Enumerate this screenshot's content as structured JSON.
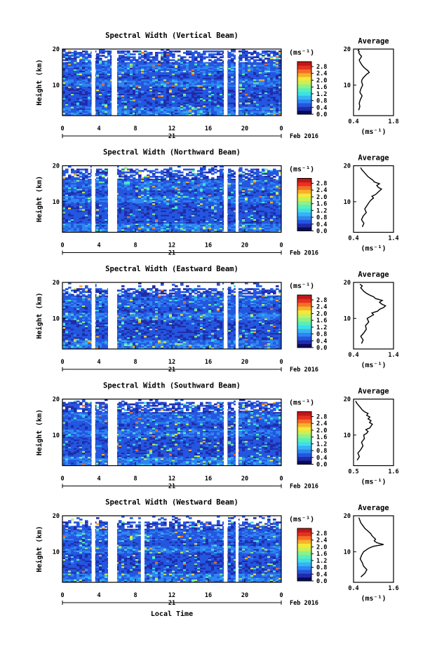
{
  "colors": {
    "colormap": [
      "#0a0a60",
      "#1f2ca8",
      "#2456e0",
      "#2f86f0",
      "#35b4f4",
      "#3ee0e6",
      "#58f0b8",
      "#90f088",
      "#c8f058",
      "#f4e838",
      "#f8b02c",
      "#f47024",
      "#e83020",
      "#c01818"
    ],
    "gap": "#ffffff",
    "frame": "#000000",
    "profile": "#000000"
  },
  "panels": [
    {
      "title": "Spectral Width (Vertical Beam)",
      "ylabel": "Height (km)",
      "yticks": [
        "20",
        "10"
      ],
      "xticks": [
        "0",
        "4",
        "8",
        "12",
        "16",
        "20",
        "0"
      ],
      "day": "21",
      "date_label": "Feb 2016",
      "colorbar": {
        "unit": "(ms⁻¹)",
        "labels": [
          "2.8",
          "2.4",
          "2.0",
          "1.6",
          "1.2",
          "0.8",
          "0.4",
          "0.0"
        ]
      },
      "average": {
        "title": "Average",
        "xlabel": "(ms⁻¹)",
        "xticks": [
          "0.4",
          "1.8"
        ],
        "yticks": [
          "20",
          "10"
        ]
      }
    },
    {
      "title": "Spectral Width (Northward Beam)",
      "ylabel": "Height (km)",
      "yticks": [
        "20",
        "10"
      ],
      "xticks": [
        "0",
        "4",
        "8",
        "12",
        "16",
        "20",
        "0"
      ],
      "day": "21",
      "date_label": "Feb 2016",
      "colorbar": {
        "unit": "(ms⁻¹)",
        "labels": [
          "2.8",
          "2.4",
          "2.0",
          "1.6",
          "1.2",
          "0.8",
          "0.4",
          "0.0"
        ]
      },
      "average": {
        "title": "Average",
        "xlabel": "(ms⁻¹)",
        "xticks": [
          "0.4",
          "1.4"
        ],
        "yticks": [
          "20",
          "10"
        ]
      }
    },
    {
      "title": "Spectral Width (Eastward Beam)",
      "ylabel": "Height (km)",
      "yticks": [
        "20",
        "10"
      ],
      "xticks": [
        "0",
        "4",
        "8",
        "12",
        "16",
        "20",
        "0"
      ],
      "day": "21",
      "date_label": "Feb 2016",
      "colorbar": {
        "unit": "(ms⁻¹)",
        "labels": [
          "2.8",
          "2.4",
          "2.0",
          "1.6",
          "1.2",
          "0.8",
          "0.4",
          "0.0"
        ]
      },
      "average": {
        "title": "Average",
        "xlabel": "(ms⁻¹)",
        "xticks": [
          "0.4",
          "1.4"
        ],
        "yticks": [
          "20",
          "10"
        ]
      }
    },
    {
      "title": "Spectral Width (Southward Beam)",
      "ylabel": "Height (km)",
      "yticks": [
        "20",
        "10"
      ],
      "xticks": [
        "0",
        "4",
        "8",
        "12",
        "16",
        "20",
        "0"
      ],
      "day": "21",
      "date_label": "Feb 2016",
      "colorbar": {
        "unit": "(ms⁻¹)",
        "labels": [
          "2.8",
          "2.4",
          "2.0",
          "1.6",
          "1.2",
          "0.8",
          "0.4",
          "0.0"
        ]
      },
      "average": {
        "title": "Average",
        "xlabel": "(ms⁻¹)",
        "xticks": [
          "0.5",
          "1.6"
        ],
        "yticks": [
          "20",
          "10"
        ]
      }
    },
    {
      "title": "Spectral Width (Westward Beam)",
      "ylabel": "Height (km)",
      "yticks": [
        "20",
        "10"
      ],
      "xticks": [
        "0",
        "4",
        "8",
        "12",
        "16",
        "20",
        "0"
      ],
      "day": "21",
      "date_label": "Feb 2016",
      "colorbar": {
        "unit": "(ms⁻¹)",
        "labels": [
          "2.8",
          "2.4",
          "2.0",
          "1.6",
          "1.2",
          "0.8",
          "0.4",
          "0.0"
        ]
      },
      "average": {
        "title": "Average",
        "xlabel": "(ms⁻¹)",
        "xticks": [
          "0.4",
          "1.6"
        ],
        "yticks": [
          "20",
          "10"
        ]
      }
    }
  ],
  "footer_xlabel": "Local Time",
  "chart_data": [
    {
      "type": "heatmap",
      "title": "Spectral Width (Vertical Beam)",
      "ylabel": "Height (km)",
      "xlim": [
        0,
        24
      ],
      "ylim": [
        1.5,
        20
      ],
      "clim": [
        0.0,
        3.0
      ],
      "data_gaps_hours": [
        [
          3.2,
          3.6
        ],
        [
          5.4,
          6.0
        ],
        [
          17.7,
          18.1
        ],
        [
          19.0,
          19.3
        ]
      ],
      "top_of_data_km": 19.5
    },
    {
      "type": "line",
      "title": "Average",
      "xlabel": "(ms⁻¹)",
      "xlim": [
        0.4,
        1.8
      ],
      "ylim": [
        1.5,
        20
      ],
      "x": [
        0.58,
        0.62,
        0.6,
        0.64,
        0.7,
        0.62,
        0.66,
        0.72,
        0.68,
        0.7,
        0.74,
        0.8,
        0.86,
        0.95,
        0.9,
        0.82,
        0.75,
        0.7,
        0.66,
        0.62,
        0.6,
        0.65,
        0.68,
        0.62,
        0.58,
        0.6,
        0.56,
        0.6
      ],
      "y": [
        3,
        4,
        5,
        6,
        7,
        8,
        9,
        10,
        11,
        11.5,
        12,
        12.5,
        13,
        13.5,
        14,
        14.5,
        15,
        15.5,
        16,
        16.5,
        17,
        17.5,
        18,
        18.5,
        19,
        19.3,
        19.6,
        20
      ]
    },
    {
      "type": "heatmap",
      "title": "Spectral Width (Northward Beam)",
      "ylabel": "Height (km)",
      "xlim": [
        0,
        24
      ],
      "ylim": [
        1.5,
        20
      ],
      "clim": [
        0.0,
        3.0
      ],
      "data_gaps_hours": [
        [
          3.2,
          3.6
        ],
        [
          5.0,
          6.0
        ],
        [
          17.7,
          18.1
        ],
        [
          19.0,
          19.3
        ]
      ],
      "top_of_data_km": 19.0
    },
    {
      "type": "line",
      "title": "Average",
      "xlabel": "(ms⁻¹)",
      "xlim": [
        0.4,
        1.4
      ],
      "ylim": [
        1.5,
        20
      ],
      "x": [
        0.62,
        0.66,
        0.6,
        0.64,
        0.72,
        0.68,
        0.74,
        0.8,
        0.84,
        0.9,
        0.86,
        0.95,
        1.0,
        1.05,
        1.1,
        1.02,
        0.98,
        1.05,
        0.92,
        0.88,
        0.82,
        0.76,
        0.72,
        0.68,
        0.64,
        0.6,
        0.58
      ],
      "y": [
        3,
        4,
        5,
        6,
        7,
        8,
        9,
        10,
        10.5,
        11,
        11.5,
        12,
        12.5,
        13,
        13.5,
        14,
        14.5,
        15,
        15.5,
        16,
        16.5,
        17,
        17.5,
        18,
        18.5,
        19,
        19.5
      ]
    },
    {
      "type": "heatmap",
      "title": "Spectral Width (Eastward Beam)",
      "ylabel": "Height (km)",
      "xlim": [
        0,
        24
      ],
      "ylim": [
        1.5,
        20
      ],
      "clim": [
        0.0,
        3.0
      ],
      "data_gaps_hours": [
        [
          3.2,
          3.6
        ],
        [
          5.0,
          6.0
        ],
        [
          17.7,
          18.1
        ],
        [
          19.0,
          19.3
        ]
      ],
      "top_of_data_km": 18.5
    },
    {
      "type": "line",
      "title": "Average",
      "xlabel": "(ms⁻¹)",
      "xlim": [
        0.4,
        1.4
      ],
      "ylim": [
        1.5,
        20
      ],
      "x": [
        0.6,
        0.64,
        0.58,
        0.66,
        0.72,
        0.7,
        0.78,
        0.74,
        0.82,
        0.9,
        0.86,
        1.0,
        1.05,
        1.15,
        1.2,
        1.1,
        1.05,
        1.12,
        0.95,
        0.9,
        0.8,
        0.72,
        0.66,
        0.62,
        0.58,
        0.62,
        0.56
      ],
      "y": [
        3,
        4,
        5,
        6,
        7,
        8,
        9,
        10,
        10.5,
        11,
        11.5,
        12,
        12.5,
        13,
        13.5,
        14,
        14.5,
        15,
        15.5,
        16,
        16.5,
        17,
        17.5,
        18,
        18.5,
        19,
        19.5
      ]
    },
    {
      "type": "heatmap",
      "title": "Spectral Width (Southward Beam)",
      "ylabel": "Height (km)",
      "xlim": [
        0,
        24
      ],
      "ylim": [
        1.5,
        20
      ],
      "clim": [
        0.0,
        3.0
      ],
      "data_gaps_hours": [
        [
          3.2,
          3.6
        ],
        [
          5.0,
          6.0
        ],
        [
          17.7,
          18.1
        ],
        [
          19.0,
          19.3
        ]
      ],
      "top_of_data_km": 19.0
    },
    {
      "type": "line",
      "title": "Average",
      "xlabel": "(ms⁻¹)",
      "xlim": [
        0.5,
        1.6
      ],
      "ylim": [
        1.5,
        20
      ],
      "x": [
        0.6,
        0.66,
        0.62,
        0.7,
        0.76,
        0.72,
        0.8,
        0.78,
        0.86,
        0.9,
        0.84,
        0.95,
        0.98,
        1.02,
        0.94,
        0.98,
        0.9,
        0.95,
        0.86,
        0.9,
        0.8,
        0.74,
        0.7,
        0.66,
        0.62,
        0.58,
        0.56
      ],
      "y": [
        3,
        4,
        5,
        6,
        7,
        8,
        9,
        10,
        10.5,
        11,
        11.5,
        12,
        12.5,
        13,
        13.5,
        14,
        14.5,
        15,
        15.5,
        16,
        16.5,
        17,
        17.5,
        18,
        18.5,
        19,
        19.5
      ]
    },
    {
      "type": "heatmap",
      "title": "Spectral Width (Westward Beam)",
      "ylabel": "Height (km)",
      "xlim": [
        0,
        24
      ],
      "ylim": [
        1.5,
        20
      ],
      "clim": [
        0.0,
        3.0
      ],
      "data_gaps_hours": [
        [
          3.2,
          3.6
        ],
        [
          5.0,
          6.0
        ],
        [
          8.6,
          9.0
        ],
        [
          17.7,
          18.1
        ],
        [
          19.0,
          19.3
        ]
      ],
      "top_of_data_km": 18.5
    },
    {
      "type": "line",
      "title": "Average",
      "xlabel": "(ms⁻¹)",
      "xlim": [
        0.4,
        1.6
      ],
      "ylim": [
        1.5,
        20
      ],
      "x": [
        0.62,
        0.74,
        0.8,
        0.7,
        0.66,
        0.6,
        0.64,
        0.7,
        0.78,
        0.86,
        1.0,
        1.3,
        1.1,
        1.02,
        1.06,
        1.0,
        0.95,
        0.92,
        0.86,
        0.8,
        0.74,
        0.7,
        0.66,
        0.62,
        0.6,
        0.58,
        0.56
      ],
      "y": [
        3,
        4,
        5,
        6,
        7,
        8,
        9,
        10,
        10.5,
        11,
        11.5,
        12,
        12.5,
        13,
        13.5,
        14,
        14.5,
        15,
        15.5,
        16,
        16.5,
        17,
        17.5,
        18,
        18.5,
        19,
        19.5
      ]
    }
  ]
}
